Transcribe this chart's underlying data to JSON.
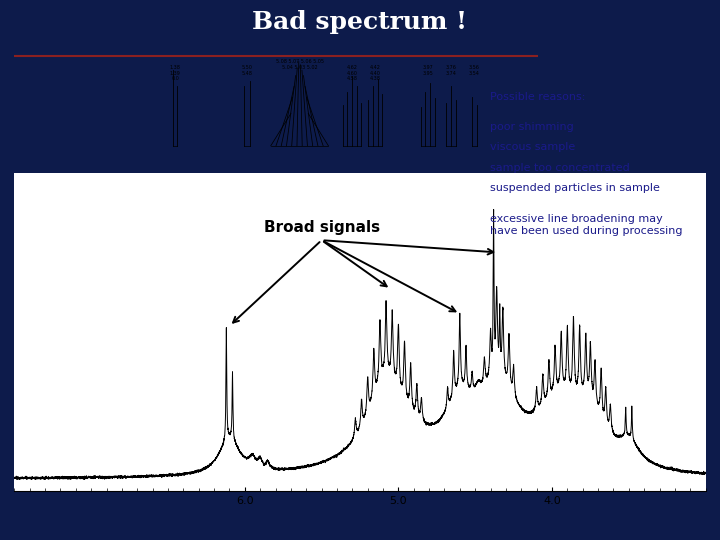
{
  "title": "Bad spectrum !",
  "title_fontsize": 18,
  "title_color": "white",
  "bg_color": "#0d1b4b",
  "main_bg_color": "white",
  "border_color": "#8b2020",
  "broad_signals_text": "Broad signals",
  "broad_signals_fontsize": 11,
  "broad_signals_color": "black",
  "possible_reasons_title": "Possible reasons:",
  "possible_reasons_items": [
    "poor shimming",
    "viscous sample",
    "sample too concentrated",
    "suspended particles in sample"
  ],
  "extra_reason": "excessive line broadening may\nhave been used during processing",
  "reasons_fontsize": 8,
  "reasons_color": "#1a1a8a",
  "arrow_color": "black",
  "spectrum_color": "black",
  "spectrum_linewidth": 0.7
}
